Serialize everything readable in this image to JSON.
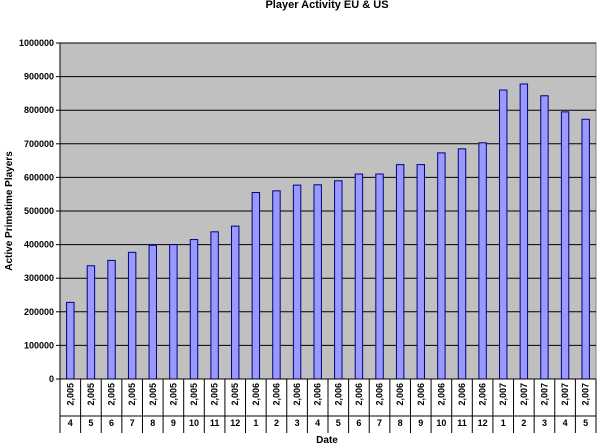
{
  "chart_data": {
    "type": "bar",
    "title": "Player Activity EU & US",
    "xlabel": "Date",
    "ylabel": "Active Primetime Players",
    "ylim": [
      0,
      1000000
    ],
    "ytick_step": 100000,
    "grid": true,
    "plot_background": "#c0c0c0",
    "bar_color": "#9999ff",
    "bar_edge_color": "#000080",
    "categories": [
      {
        "year": "2,005",
        "month": "4"
      },
      {
        "year": "2,005",
        "month": "5"
      },
      {
        "year": "2,005",
        "month": "6"
      },
      {
        "year": "2,005",
        "month": "7"
      },
      {
        "year": "2,005",
        "month": "8"
      },
      {
        "year": "2,005",
        "month": "9"
      },
      {
        "year": "2,005",
        "month": "10"
      },
      {
        "year": "2,005",
        "month": "11"
      },
      {
        "year": "2,005",
        "month": "12"
      },
      {
        "year": "2,006",
        "month": "1"
      },
      {
        "year": "2,006",
        "month": "2"
      },
      {
        "year": "2,006",
        "month": "3"
      },
      {
        "year": "2,006",
        "month": "4"
      },
      {
        "year": "2,006",
        "month": "5"
      },
      {
        "year": "2,006",
        "month": "6"
      },
      {
        "year": "2,006",
        "month": "7"
      },
      {
        "year": "2,006",
        "month": "8"
      },
      {
        "year": "2,006",
        "month": "9"
      },
      {
        "year": "2,006",
        "month": "10"
      },
      {
        "year": "2,006",
        "month": "11"
      },
      {
        "year": "2,006",
        "month": "12"
      },
      {
        "year": "2,007",
        "month": "1"
      },
      {
        "year": "2,007",
        "month": "2"
      },
      {
        "year": "2,007",
        "month": "3"
      },
      {
        "year": "2,007",
        "month": "4"
      },
      {
        "year": "2,007",
        "month": "5"
      }
    ],
    "values": [
      228000,
      337000,
      353000,
      377000,
      398000,
      400000,
      415000,
      438000,
      455000,
      555000,
      560000,
      577000,
      578000,
      590000,
      610000,
      610000,
      638000,
      638000,
      673000,
      685000,
      703000,
      860000,
      878000,
      843000,
      795000,
      773000
    ]
  }
}
